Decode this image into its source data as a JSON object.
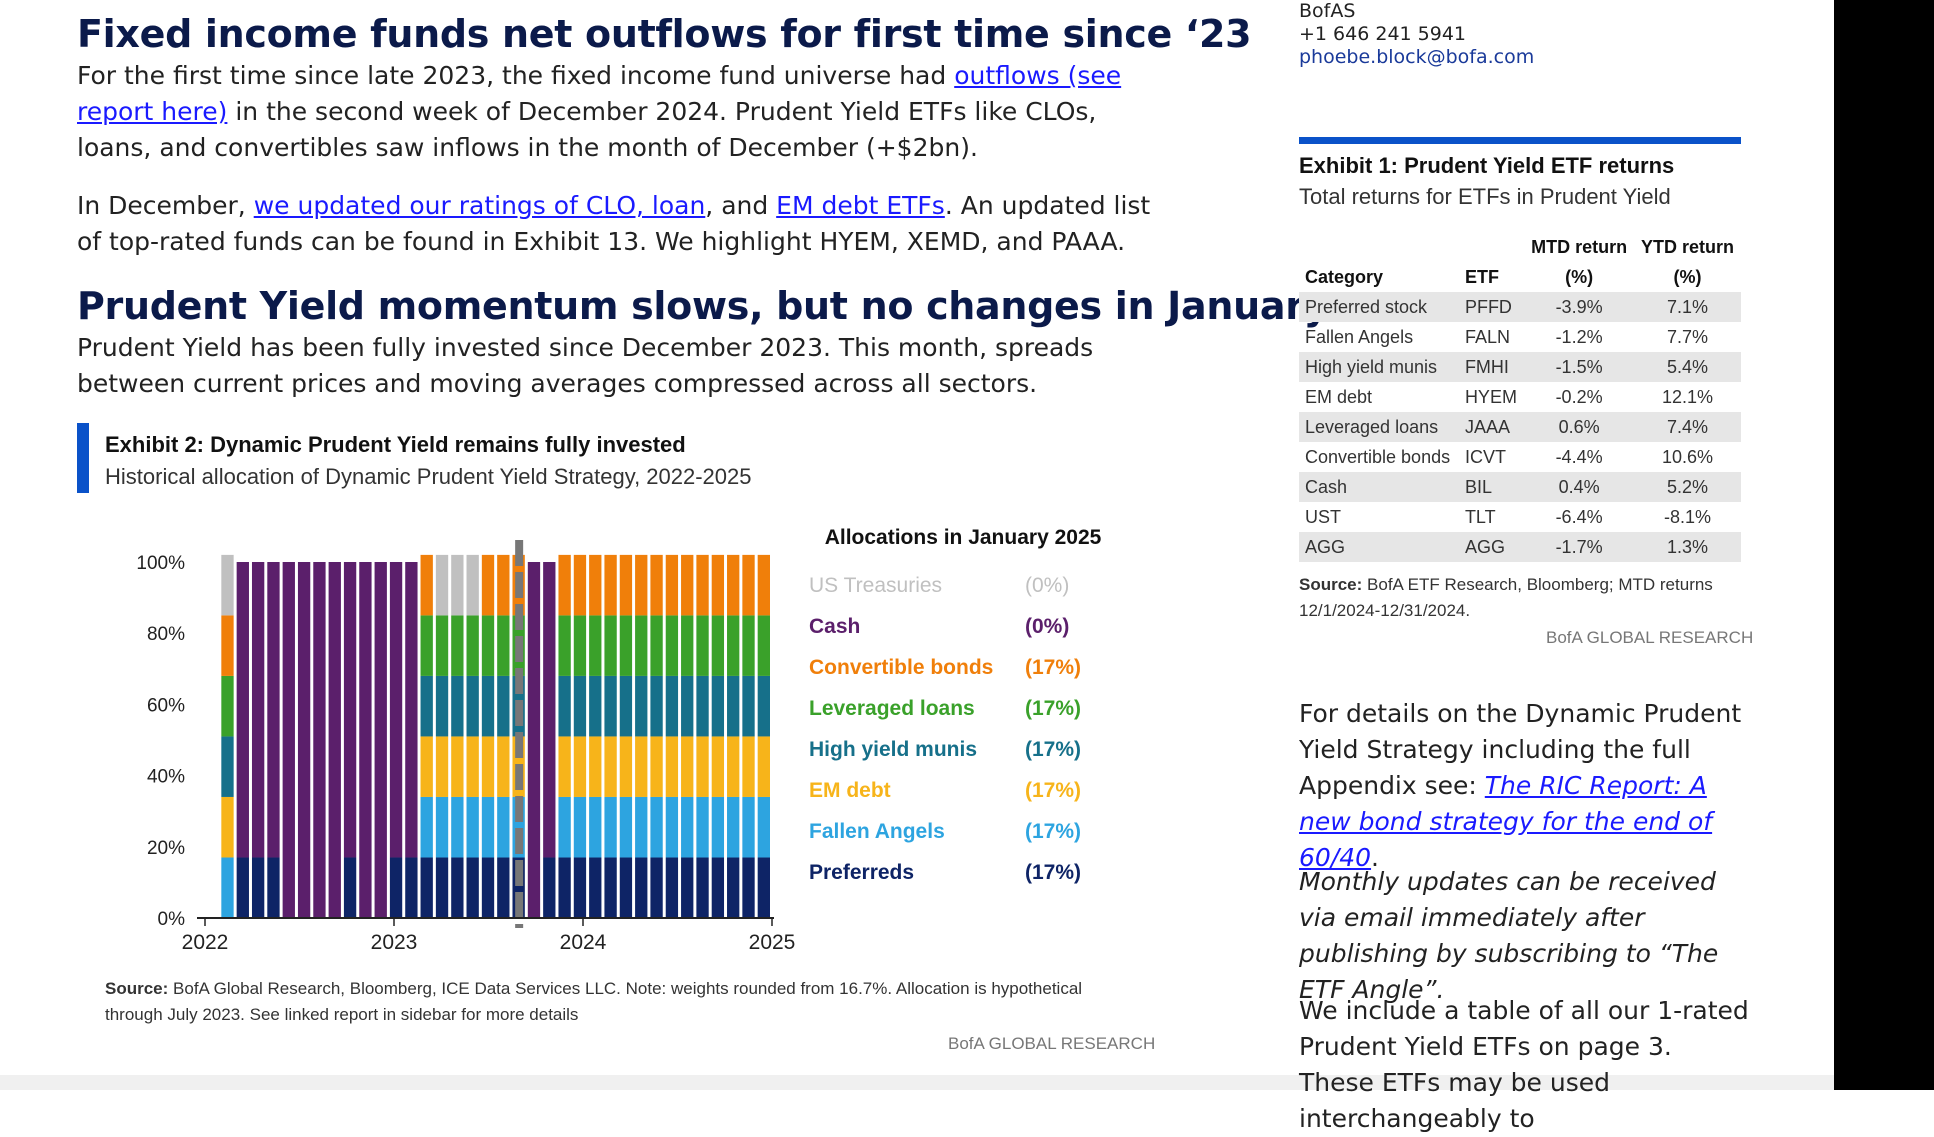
{
  "section1": {
    "heading": "Fixed income funds net outflows for first time since ‘23",
    "p1_pre": "For the first time since late 2023, the fixed income fund universe had ",
    "p1_link": "outflows (see report here)",
    "p1_post": "  in the second week of December 2024. Prudent Yield ETFs like CLOs, loans, and convertibles saw inflows in the month of December (+$2bn).",
    "p2_pre": "In December, ",
    "p2_link1": "we updated our ratings of CLO, loan",
    "p2_mid": ", and ",
    "p2_link2": "EM debt ETFs",
    "p2_post": ". An updated list of top-rated funds can be found in Exhibit 13. We highlight HYEM, XEMD, and PAAA."
  },
  "section2": {
    "heading": "Prudent Yield momentum slows, but no changes in January",
    "p1": "Prudent Yield has been fully invested since December 2023. This month, spreads between current prices and moving averages compressed across all sectors."
  },
  "exhibit2": {
    "title": "Exhibit 2: Dynamic Prudent Yield remains fully invested",
    "subtitle": "Historical allocation of Dynamic Prudent Yield Strategy, 2022-2025",
    "source_label": "Source:",
    "source_text": " BofA Global Research, Bloomberg, ICE Data Services LLC. Note: weights rounded from 16.7%.  Allocation is hypothetical through July 2023.  See linked report in sidebar for more details",
    "credit": "BofA GLOBAL RESEARCH"
  },
  "chart_data": {
    "type": "bar",
    "stacked": true,
    "title": "Allocations in January 2025",
    "y_ticks": [
      "0%",
      "20%",
      "40%",
      "60%",
      "80%",
      "100%"
    ],
    "x_ticks": [
      "2022",
      "2023",
      "2024",
      "2025"
    ],
    "ylim": [
      0,
      100
    ],
    "categories": [
      "Preferreds",
      "Fallen Angels",
      "EM debt",
      "High yield munis",
      "Leveraged loans",
      "Convertible bonds",
      "Cash",
      "US Treasuries"
    ],
    "legend": [
      {
        "name": "US Treasuries",
        "value": "(0%)",
        "color": "#c0c0c0"
      },
      {
        "name": "Cash",
        "value": "(0%)",
        "color": "#5b1f6b"
      },
      {
        "name": "Convertible bonds",
        "value": "(17%)",
        "color": "#f07f0a"
      },
      {
        "name": "Leveraged loans",
        "value": "(17%)",
        "color": "#3aa12a"
      },
      {
        "name": "High yield munis",
        "value": "(17%)",
        "color": "#16708a"
      },
      {
        "name": "EM debt",
        "value": "(17%)",
        "color": "#f7b41a"
      },
      {
        "name": "Fallen Angels",
        "value": "(17%)",
        "color": "#2da4e0"
      },
      {
        "name": "Preferreds",
        "value": "(17%)",
        "color": "#0e2466"
      }
    ],
    "marker_month": 20,
    "months": [
      [
        0,
        0,
        0,
        0,
        0,
        0,
        0,
        0
      ],
      [
        0,
        17,
        17,
        17,
        17,
        17,
        0,
        17
      ],
      [
        17,
        0,
        0,
        0,
        0,
        0,
        83,
        0
      ],
      [
        17,
        0,
        0,
        0,
        0,
        0,
        83,
        0
      ],
      [
        17,
        0,
        0,
        0,
        0,
        0,
        83,
        0
      ],
      [
        0,
        0,
        0,
        0,
        0,
        0,
        100,
        0
      ],
      [
        0,
        0,
        0,
        0,
        0,
        0,
        100,
        0
      ],
      [
        0,
        0,
        0,
        0,
        0,
        0,
        100,
        0
      ],
      [
        0,
        0,
        0,
        0,
        0,
        0,
        100,
        0
      ],
      [
        17,
        0,
        0,
        0,
        0,
        0,
        83,
        0
      ],
      [
        0,
        0,
        0,
        0,
        0,
        0,
        100,
        0
      ],
      [
        0,
        0,
        0,
        0,
        0,
        0,
        100,
        0
      ],
      [
        17,
        0,
        0,
        0,
        0,
        0,
        83,
        0
      ],
      [
        17,
        0,
        0,
        0,
        0,
        0,
        83,
        0
      ],
      [
        17,
        17,
        17,
        17,
        17,
        17,
        0,
        0
      ],
      [
        17,
        17,
        17,
        17,
        17,
        0,
        0,
        17
      ],
      [
        17,
        17,
        17,
        17,
        17,
        0,
        0,
        17
      ],
      [
        17,
        17,
        17,
        17,
        17,
        0,
        0,
        17
      ],
      [
        17,
        17,
        17,
        17,
        17,
        17,
        0,
        0
      ],
      [
        17,
        17,
        17,
        17,
        17,
        17,
        0,
        0
      ],
      [
        17,
        17,
        17,
        17,
        17,
        17,
        0,
        0
      ],
      [
        0,
        0,
        0,
        0,
        0,
        0,
        100,
        0
      ],
      [
        17,
        0,
        0,
        0,
        0,
        0,
        83,
        0
      ],
      [
        17,
        17,
        17,
        17,
        17,
        17,
        0,
        0
      ],
      [
        17,
        17,
        17,
        17,
        17,
        17,
        0,
        0
      ],
      [
        17,
        17,
        17,
        17,
        17,
        17,
        0,
        0
      ],
      [
        17,
        17,
        17,
        17,
        17,
        17,
        0,
        0
      ],
      [
        17,
        17,
        17,
        17,
        17,
        17,
        0,
        0
      ],
      [
        17,
        17,
        17,
        17,
        17,
        17,
        0,
        0
      ],
      [
        17,
        17,
        17,
        17,
        17,
        17,
        0,
        0
      ],
      [
        17,
        17,
        17,
        17,
        17,
        17,
        0,
        0
      ],
      [
        17,
        17,
        17,
        17,
        17,
        17,
        0,
        0
      ],
      [
        17,
        17,
        17,
        17,
        17,
        17,
        0,
        0
      ],
      [
        17,
        17,
        17,
        17,
        17,
        17,
        0,
        0
      ],
      [
        17,
        17,
        17,
        17,
        17,
        17,
        0,
        0
      ],
      [
        17,
        17,
        17,
        17,
        17,
        17,
        0,
        0
      ],
      [
        17,
        17,
        17,
        17,
        17,
        17,
        0,
        0
      ]
    ]
  },
  "contact": {
    "org": "BofAS",
    "phone": "+1 646 241 5941",
    "email": "phoebe.block@bofa.com"
  },
  "exhibit1": {
    "title": "Exhibit 1: Prudent Yield ETF returns",
    "subtitle": "Total returns for ETFs in Prudent Yield",
    "headers": {
      "category": "Category",
      "etf": "ETF",
      "mtd_1": "MTD return",
      "mtd_2": "(%)",
      "ytd_1": "YTD return",
      "ytd_2": "(%)"
    },
    "rows": [
      {
        "category": "Preferred stock",
        "etf": "PFFD",
        "mtd": "-3.9%",
        "ytd": "7.1%"
      },
      {
        "category": "Fallen Angels",
        "etf": "FALN",
        "mtd": "-1.2%",
        "ytd": "7.7%"
      },
      {
        "category": "High yield munis",
        "etf": "FMHI",
        "mtd": "-1.5%",
        "ytd": "5.4%"
      },
      {
        "category": "EM debt",
        "etf": "HYEM",
        "mtd": "-0.2%",
        "ytd": "12.1%"
      },
      {
        "category": "Leveraged loans",
        "etf": "JAAA",
        "mtd": "0.6%",
        "ytd": "7.4%"
      },
      {
        "category": "Convertible bonds",
        "etf": "ICVT",
        "mtd": "-4.4%",
        "ytd": "10.6%"
      },
      {
        "category": "Cash",
        "etf": "BIL",
        "mtd": "0.4%",
        "ytd": "5.2%"
      },
      {
        "category": "UST",
        "etf": "TLT",
        "mtd": "-6.4%",
        "ytd": "-8.1%"
      },
      {
        "category": "AGG",
        "etf": "AGG",
        "mtd": "-1.7%",
        "ytd": "1.3%"
      }
    ],
    "source_label": "Source:",
    "source_text": " BofA ETF Research, Bloomberg; MTD returns 12/1/2024-12/31/2024.",
    "credit": "BofA GLOBAL RESEARCH"
  },
  "sidebar": {
    "p1_pre": "For details on the Dynamic Prudent Yield Strategy including the full Appendix see: ",
    "p1_link": "The RIC Report: A new bond strategy for the end of 60/40",
    "p1_post": ".",
    "p2": "Monthly updates can be received via email immediately after publishing by subscribing to “The ETF Angle”.",
    "p3": "We include a table of all our 1-rated Prudent Yield ETFs on page 3. These ETFs may be used interchangeably to"
  },
  "colors": {
    "heading": "#0b1a4a",
    "accent": "#0a52c9",
    "link": "#1a1aff"
  }
}
